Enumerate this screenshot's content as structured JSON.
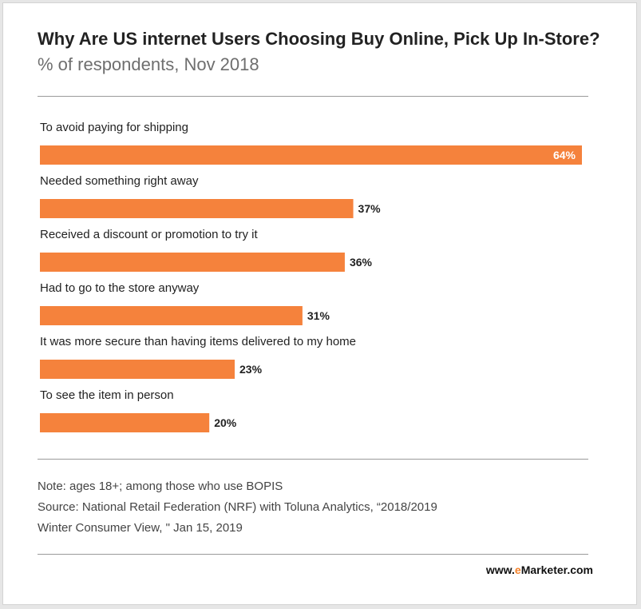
{
  "chart_data": {
    "type": "bar",
    "orientation": "horizontal",
    "title": "Why Are US internet Users Choosing Buy Online, Pick Up In-Store?",
    "subtitle": "% of respondents, Nov 2018",
    "categories": [
      "To avoid paying for shipping",
      "Needed something right away",
      "Received a discount or promotion to try it",
      "Had to go to the store anyway",
      "It was more secure than having items delivered to my home",
      "To see the item in person"
    ],
    "values": [
      64,
      37,
      36,
      31,
      23,
      20
    ],
    "value_labels": [
      "64%",
      "37%",
      "36%",
      "31%",
      "23%",
      "20%"
    ],
    "xlim": [
      0,
      64
    ],
    "bar_color": "#f5823c",
    "grid": false,
    "legend": "none"
  },
  "notes": {
    "note": "Note: ages 18+; among those who use BOPIS",
    "source_line1": "Source: National Retail Federation (NRF) with Toluna Analytics, “2018/2019",
    "source_line2": "Winter Consumer View, \" Jan 15, 2019"
  },
  "brand": {
    "prefix": "www.",
    "accent": "e",
    "name": "Marketer",
    "suffix": ".com",
    "accent_color": "#f5822a"
  }
}
